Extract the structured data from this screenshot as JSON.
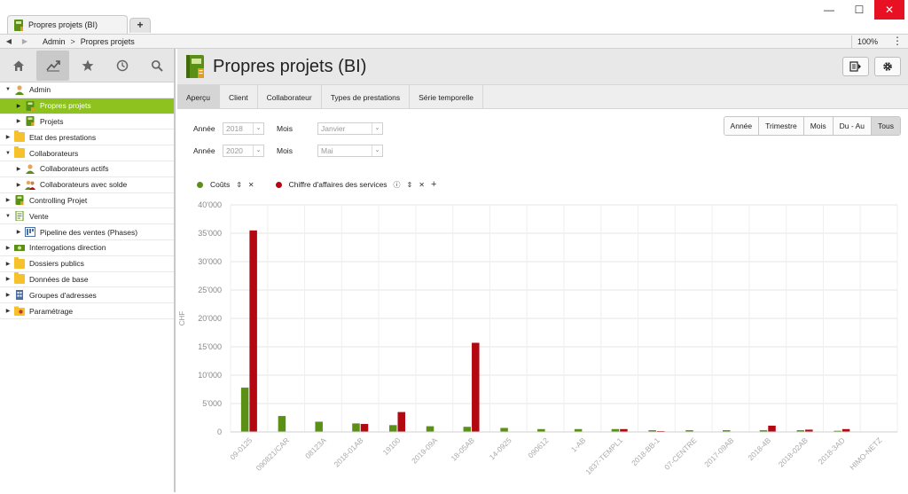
{
  "window": {
    "tab_title": "Propres projets (BI)",
    "new_tab": "+",
    "minimize": "—",
    "maximize": "☐",
    "close": "✕"
  },
  "nav": {
    "back": "◀",
    "forward": "▶",
    "breadcrumb": [
      "Admin",
      "Propres projets"
    ],
    "separator": ">",
    "zoom": "100%",
    "menu": "⋮"
  },
  "sidebar": {
    "tools": [
      {
        "name": "home-icon",
        "glyph": "⌂"
      },
      {
        "name": "analytics-icon",
        "glyph": "↗"
      },
      {
        "name": "star-icon",
        "glyph": "★"
      },
      {
        "name": "history-icon",
        "glyph": "◷"
      },
      {
        "name": "search-icon",
        "glyph": "🔍"
      }
    ],
    "items": [
      {
        "label": "Admin",
        "indent": 0,
        "expanded": true,
        "icon": "user"
      },
      {
        "label": "Propres projets",
        "indent": 1,
        "expanded": false,
        "icon": "book",
        "selected": true
      },
      {
        "label": "Projets",
        "indent": 1,
        "expanded": false,
        "icon": "book"
      },
      {
        "label": "Etat des prestations",
        "indent": 0,
        "expanded": false,
        "icon": "folder"
      },
      {
        "label": "Collaborateurs",
        "indent": 0,
        "expanded": true,
        "icon": "folder"
      },
      {
        "label": "Collaborateurs actifs",
        "indent": 1,
        "expanded": false,
        "icon": "user"
      },
      {
        "label": "Collaborateurs avec solde",
        "indent": 1,
        "expanded": false,
        "icon": "users"
      },
      {
        "label": "Controlling Projet",
        "indent": 0,
        "expanded": false,
        "icon": "book"
      },
      {
        "label": "Vente",
        "indent": 0,
        "expanded": true,
        "icon": "doc"
      },
      {
        "label": "Pipeline des ventes (Phases)",
        "indent": 1,
        "expanded": false,
        "icon": "pipeline"
      },
      {
        "label": "Interrogations direction",
        "indent": 0,
        "expanded": false,
        "icon": "money"
      },
      {
        "label": "Dossiers publics",
        "indent": 0,
        "expanded": false,
        "icon": "folder"
      },
      {
        "label": "Données de base",
        "indent": 0,
        "expanded": false,
        "icon": "folder"
      },
      {
        "label": "Groupes d'adresses",
        "indent": 0,
        "expanded": false,
        "icon": "building"
      },
      {
        "label": "Paramétrage",
        "indent": 0,
        "expanded": false,
        "icon": "folder-gear"
      }
    ]
  },
  "page": {
    "title": "Propres projets (BI)",
    "tabs": [
      "Aperçu",
      "Client",
      "Collaborateur",
      "Types de prestations",
      "Série temporelle"
    ],
    "active_tab": 0
  },
  "filters": {
    "from_year_label": "Année",
    "from_year": "2018",
    "from_month_label": "Mois",
    "from_month": "Janvier",
    "to_year_label": "Année",
    "to_year": "2020",
    "to_month_label": "Mois",
    "to_month": "Mai"
  },
  "period_buttons": [
    "Année",
    "Trimestre",
    "Mois",
    "Du - Au",
    "Tous"
  ],
  "period_active": 4,
  "legend": [
    {
      "name": "Coûts",
      "color": "#5a9016"
    },
    {
      "name": "Chiffre d'affaires des services",
      "color": "#b30812"
    }
  ],
  "colors": {
    "accent": "#8dc21f",
    "costs": "#5a9016",
    "revenue": "#b30812"
  },
  "chart_data": {
    "type": "bar",
    "ylabel": "CHF",
    "ylim": [
      0,
      40000
    ],
    "yticks": [
      "0",
      "5'000",
      "10'000",
      "15'000",
      "20'000",
      "25'000",
      "30'000",
      "35'000",
      "40'000"
    ],
    "grid": true,
    "legend_position": "top-left",
    "categories": [
      "09-0125",
      "090821/CAR",
      "08123A",
      "2018-01AB",
      "19100",
      "2019-09A",
      "18-05AB",
      "14-0925",
      "090612",
      "1-AB",
      "1837-TEMPL1",
      "2018-BB-1",
      "07-CENTRE",
      "2017-09AB",
      "2018-4B",
      "2018-02AB",
      "2018-3AD",
      "HIMO-NETZ"
    ],
    "series": [
      {
        "name": "Coûts",
        "values": [
          7800,
          2800,
          1800,
          1500,
          1200,
          1000,
          900,
          700,
          500,
          500,
          500,
          300,
          300,
          300,
          300,
          300,
          200,
          0
        ]
      },
      {
        "name": "Chiffre d'affaires des services",
        "values": [
          35500,
          0,
          0,
          1400,
          3500,
          0,
          15700,
          0,
          0,
          0,
          500,
          150,
          0,
          0,
          1100,
          400,
          500,
          0
        ]
      }
    ]
  }
}
